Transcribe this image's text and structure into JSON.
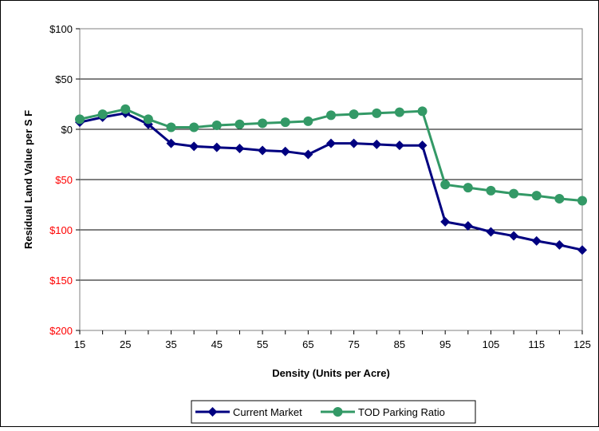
{
  "chart_data": {
    "type": "line",
    "title": "",
    "xlabel": "Density (Units per Acre)",
    "ylabel": "Residual Land Value per S F",
    "x": [
      15,
      20,
      25,
      30,
      35,
      40,
      45,
      50,
      55,
      60,
      65,
      70,
      75,
      80,
      85,
      90,
      95,
      100,
      105,
      110,
      115,
      120,
      125
    ],
    "x_ticks": [
      15,
      25,
      35,
      45,
      55,
      65,
      75,
      85,
      95,
      105,
      115,
      125
    ],
    "x_tick_labels": [
      "15",
      "25",
      "35",
      "45",
      "55",
      "65",
      "75",
      "85",
      "95",
      "105",
      "115",
      "125"
    ],
    "ylim": [
      -200,
      100
    ],
    "y_ticks": [
      100,
      50,
      0,
      -50,
      -100,
      -150,
      -200
    ],
    "y_tick_labels": [
      "$100",
      "$50",
      "$0",
      "$50",
      "$100",
      "$150",
      "$200"
    ],
    "y_tick_colors": [
      "#000000",
      "#000000",
      "#000000",
      "#ff0000",
      "#ff0000",
      "#ff0000",
      "#ff0000"
    ],
    "grid": "horizontal",
    "legend_position": "bottom",
    "series": [
      {
        "name": "Current Market",
        "color": "#000080",
        "marker": "diamond",
        "values": [
          7,
          12,
          16,
          5,
          -14,
          -17,
          -18,
          -19,
          -21,
          -22,
          -25,
          -14,
          -14,
          -15,
          -16,
          -16,
          -92,
          -96,
          -102,
          -106,
          -111,
          -115,
          -120
        ]
      },
      {
        "name": "TOD Parking Ratio",
        "color": "#339966",
        "marker": "circle",
        "values": [
          10,
          15,
          20,
          10,
          2,
          2,
          4,
          5,
          6,
          7,
          8,
          14,
          15,
          16,
          17,
          18,
          -55,
          -58,
          -61,
          -64,
          -66,
          -69,
          -71
        ]
      }
    ]
  }
}
